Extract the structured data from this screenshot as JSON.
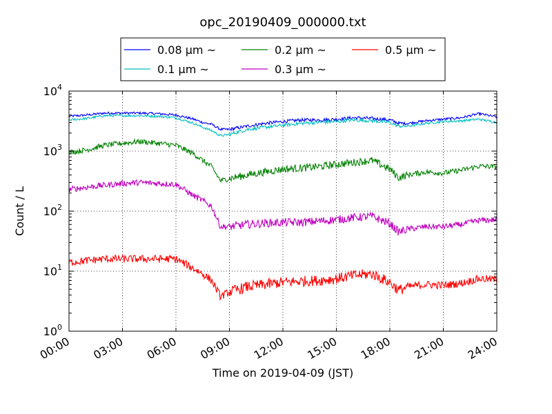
{
  "chart_data": {
    "type": "line",
    "title": "opc_20190409_000000.txt",
    "xlabel": "Time on 2019-04-09 (JST)",
    "ylabel": "Count / L",
    "yscale": "log",
    "ylim": [
      1,
      10000
    ],
    "xlim_hours": [
      0,
      24
    ],
    "grid": true,
    "legend_placement": "top-center, above plot",
    "x_ticks": [
      "00:00",
      "03:00",
      "06:00",
      "09:00",
      "12:00",
      "15:00",
      "18:00",
      "21:00",
      "24:00"
    ],
    "y_ticks": [
      {
        "value": 1,
        "label_base": "10",
        "label_exp": "0"
      },
      {
        "value": 10,
        "label_base": "10",
        "label_exp": "1"
      },
      {
        "value": 100,
        "label_base": "10",
        "label_exp": "2"
      },
      {
        "value": 1000,
        "label_base": "10",
        "label_exp": "3"
      },
      {
        "value": 10000,
        "label_base": "10",
        "label_exp": "4"
      }
    ],
    "x_hours": [
      0,
      1,
      2,
      3,
      4,
      5,
      6,
      7,
      7.5,
      8,
      8.5,
      9,
      10,
      11,
      12,
      13,
      14,
      15,
      16,
      17,
      18,
      18.5,
      19,
      20,
      21,
      22,
      23,
      24
    ],
    "series": [
      {
        "name": "0.08 μm ~",
        "color": "#0000ff",
        "values": [
          3800,
          4000,
          4300,
          4300,
          4300,
          4200,
          4000,
          3400,
          3000,
          2800,
          2300,
          2300,
          2600,
          2900,
          3100,
          3300,
          3300,
          3400,
          3600,
          3500,
          3300,
          2900,
          2900,
          3200,
          3400,
          3600,
          4200,
          3700
        ]
      },
      {
        "name": "0.1 μm ~",
        "color": "#00bfbf",
        "values": [
          3300,
          3500,
          3900,
          3900,
          3900,
          3800,
          3600,
          2900,
          2500,
          2200,
          1800,
          1900,
          2300,
          2500,
          2700,
          2900,
          3000,
          3100,
          3300,
          3200,
          3000,
          2600,
          2600,
          2900,
          3100,
          3200,
          3400,
          3000
        ]
      },
      {
        "name": "0.2 μm ~",
        "color": "#008000",
        "values": [
          950,
          1050,
          1250,
          1350,
          1450,
          1350,
          1250,
          900,
          700,
          550,
          320,
          350,
          400,
          450,
          500,
          520,
          550,
          600,
          650,
          700,
          500,
          360,
          400,
          450,
          430,
          480,
          560,
          550
        ]
      },
      {
        "name": "0.3 μm ~",
        "color": "#bf00bf",
        "values": [
          230,
          250,
          270,
          290,
          300,
          290,
          280,
          180,
          150,
          120,
          55,
          55,
          60,
          63,
          65,
          65,
          68,
          72,
          78,
          82,
          62,
          45,
          50,
          55,
          55,
          60,
          70,
          72
        ]
      },
      {
        "name": "0.5 μm ~",
        "color": "#ff0000",
        "values": [
          14,
          15,
          16,
          16,
          16,
          16,
          16,
          11,
          9,
          7,
          3.8,
          4.5,
          5.5,
          6.0,
          6.5,
          6.8,
          7.0,
          7.5,
          8.5,
          9.0,
          6.5,
          4.8,
          5.5,
          6.0,
          5.8,
          6.3,
          7.5,
          7.2
        ]
      }
    ]
  }
}
